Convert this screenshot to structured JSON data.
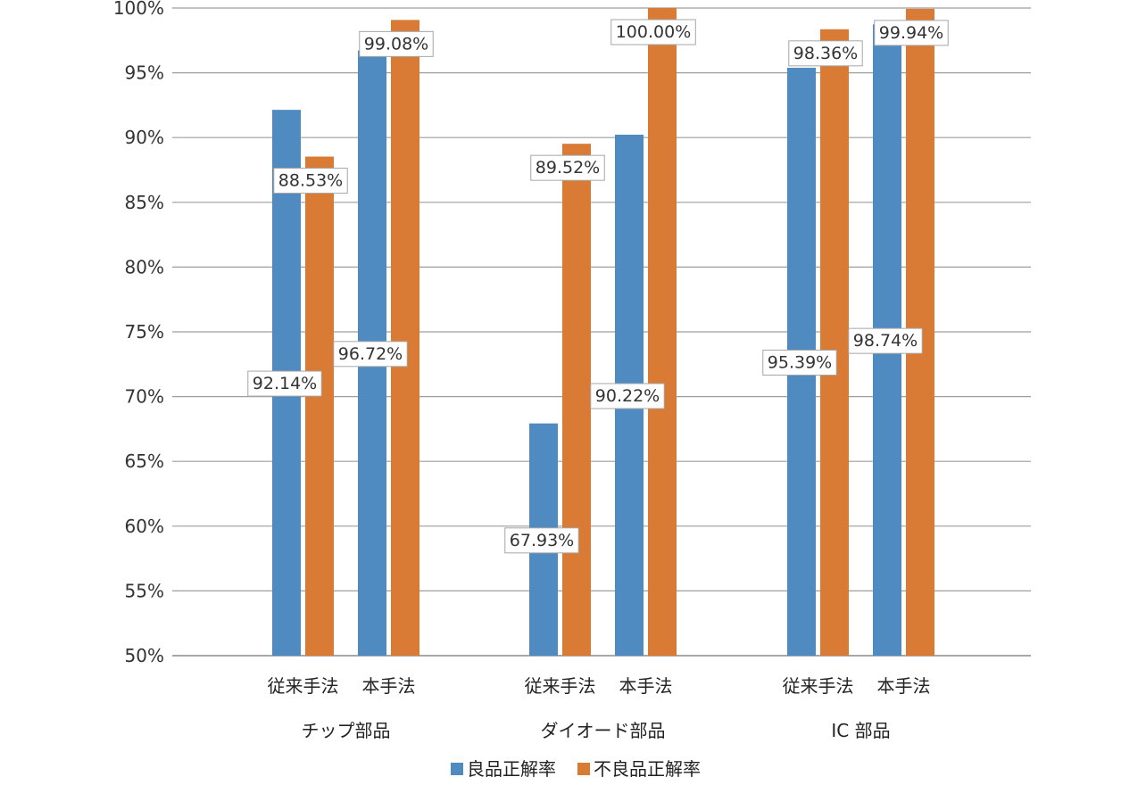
{
  "chart_data": {
    "type": "bar",
    "groups": [
      {
        "label": "チップ部品",
        "categories": [
          "従来手法",
          "本手法"
        ]
      },
      {
        "label": "ダイオード部品",
        "categories": [
          "従来手法",
          "本手法"
        ]
      },
      {
        "label": "IC 部品",
        "categories": [
          "従来手法",
          "本手法"
        ]
      }
    ],
    "series": [
      {
        "name": "良品正解率",
        "color": "#4f8bc0",
        "values": [
          92.14,
          96.72,
          67.93,
          90.22,
          95.39,
          98.74
        ],
        "labels": [
          "92.14%",
          "96.72%",
          "67.93%",
          "90.22%",
          "95.39%",
          "98.74%"
        ]
      },
      {
        "name": "不良品正解率",
        "color": "#d97a35",
        "values": [
          88.53,
          99.08,
          89.52,
          100.0,
          98.36,
          99.94
        ],
        "labels": [
          "88.53%",
          "99.08%",
          "89.52%",
          "100.00%",
          "98.36%",
          "99.94%"
        ]
      }
    ],
    "ylim": [
      50,
      100
    ],
    "yticks": [
      "50%",
      "55%",
      "60%",
      "65%",
      "70%",
      "75%",
      "80%",
      "85%",
      "90%",
      "95%",
      "100%"
    ],
    "grid": true,
    "legend": "bottom",
    "title": "",
    "xlabel": "",
    "ylabel": ""
  }
}
